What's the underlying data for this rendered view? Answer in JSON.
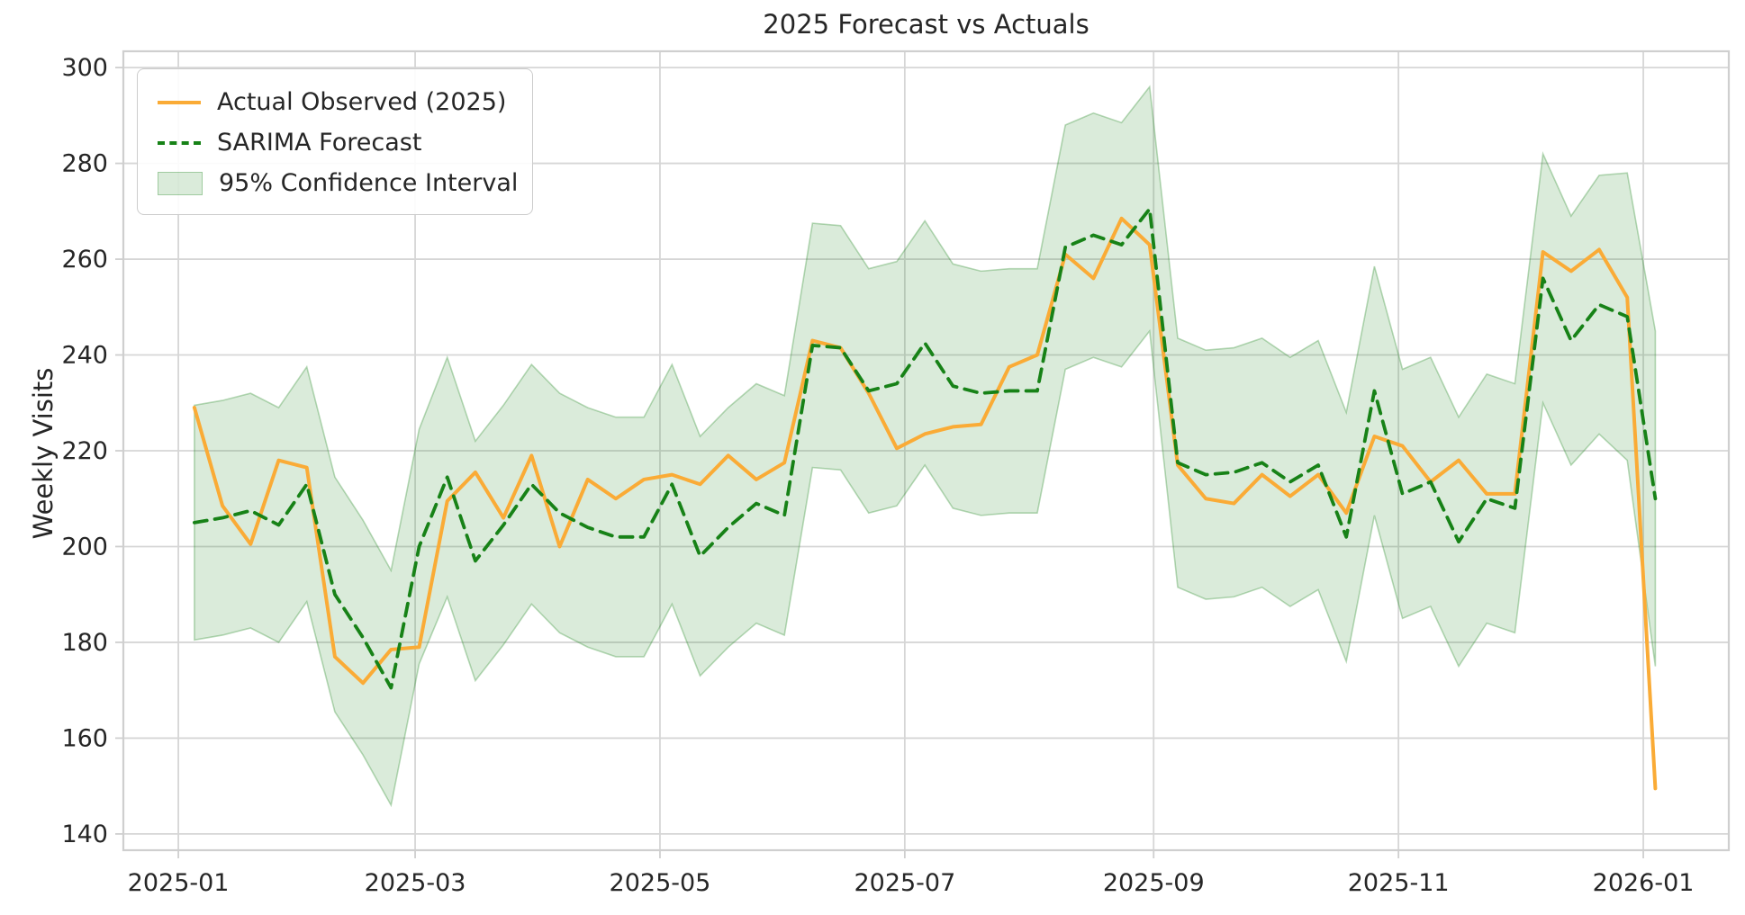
{
  "page": {
    "background": "#ffffff"
  },
  "chart_data": {
    "type": "line",
    "title": "2025 Forecast vs Actuals",
    "xlabel": "",
    "ylabel": "Weekly Visits",
    "grid": true,
    "legend_position": "upper left",
    "legend": [
      {
        "label": "Actual Observed (2025)",
        "series": "actual",
        "style": "solid"
      },
      {
        "label": "SARIMA Forecast",
        "series": "forecast",
        "style": "dashed"
      },
      {
        "label": "95% Confidence Interval",
        "series": "confidence_interval",
        "style": "band"
      }
    ],
    "colors": {
      "actual": "#FAAB36",
      "forecast": "#178217",
      "band_fill": "rgba(23,130,23,0.16)",
      "band_edge": "rgba(23,130,23,0.30)",
      "grid": "#d6d6d6",
      "spine": "#cfcfcf",
      "text": "#262626"
    },
    "ylim": [
      136.6,
      303.4
    ],
    "y_ticks": [
      140,
      160,
      180,
      200,
      220,
      240,
      260,
      280,
      300
    ],
    "xlim_days": [
      -13.7,
      386.3
    ],
    "x_tick_days": [
      0,
      59,
      120,
      181,
      243,
      304,
      365
    ],
    "x_tick_labels": [
      "2025-01",
      "2025-03",
      "2025-05",
      "2025-07",
      "2025-09",
      "2025-11",
      "2026-01"
    ],
    "dates": [
      "2025-01-05",
      "2025-01-12",
      "2025-01-19",
      "2025-01-26",
      "2025-02-02",
      "2025-02-09",
      "2025-02-16",
      "2025-02-23",
      "2025-03-02",
      "2025-03-09",
      "2025-03-16",
      "2025-03-23",
      "2025-03-30",
      "2025-04-06",
      "2025-04-13",
      "2025-04-20",
      "2025-04-27",
      "2025-05-04",
      "2025-05-11",
      "2025-05-18",
      "2025-05-25",
      "2025-06-01",
      "2025-06-08",
      "2025-06-15",
      "2025-06-22",
      "2025-06-29",
      "2025-07-06",
      "2025-07-13",
      "2025-07-20",
      "2025-07-27",
      "2025-08-03",
      "2025-08-10",
      "2025-08-17",
      "2025-08-24",
      "2025-08-31",
      "2025-09-07",
      "2025-09-14",
      "2025-09-21",
      "2025-09-28",
      "2025-10-05",
      "2025-10-12",
      "2025-10-19",
      "2025-10-26",
      "2025-11-02",
      "2025-11-09",
      "2025-11-16",
      "2025-11-23",
      "2025-11-30",
      "2025-12-07",
      "2025-12-14",
      "2025-12-21",
      "2025-12-28",
      "2026-01-04"
    ],
    "x_days": [
      4,
      11,
      18,
      25,
      32,
      39,
      46,
      53,
      60,
      67,
      74,
      81,
      88,
      95,
      102,
      109,
      116,
      123,
      130,
      137,
      144,
      151,
      158,
      165,
      172,
      179,
      186,
      193,
      200,
      207,
      214,
      221,
      228,
      235,
      242,
      249,
      256,
      263,
      270,
      277,
      284,
      291,
      298,
      305,
      312,
      319,
      326,
      333,
      340,
      347,
      354,
      361,
      368
    ],
    "series": [
      {
        "name": "Actual Observed (2025)",
        "key": "actual",
        "dash": false,
        "values": [
          229,
          208.5,
          200.5,
          218,
          216.5,
          177,
          171.5,
          178.5,
          179,
          209.5,
          215.5,
          206,
          219,
          200,
          214,
          210,
          214,
          215,
          213,
          219,
          214,
          217.5,
          243,
          241.5,
          232,
          220.5,
          223.5,
          225,
          225.5,
          237.5,
          240,
          261,
          256,
          268.5,
          263,
          217,
          210,
          209,
          215,
          210.5,
          215,
          207,
          223,
          221,
          213.5,
          218,
          211,
          211,
          261.5,
          257.5,
          262,
          252,
          149.5
        ]
      },
      {
        "name": "SARIMA Forecast",
        "key": "forecast",
        "dash": true,
        "values": [
          205,
          206,
          207.5,
          204.5,
          213,
          190,
          181,
          170.5,
          200,
          214.5,
          197,
          204.5,
          213,
          207,
          204,
          202,
          202,
          213,
          198,
          204,
          209,
          206.5,
          242,
          241.5,
          232.5,
          234,
          242.5,
          233.5,
          232,
          232.5,
          232.5,
          262.5,
          265,
          263,
          270.5,
          217.5,
          215,
          215.5,
          217.5,
          213.5,
          217,
          202,
          232.5,
          211,
          213.5,
          201,
          210,
          208,
          256,
          243,
          250.5,
          248,
          210
        ]
      }
    ],
    "band": {
      "name": "95% Confidence Interval",
      "upper": [
        229.5,
        230.5,
        232,
        229,
        237.5,
        214.5,
        205.5,
        195,
        224.5,
        239.5,
        222,
        229.5,
        238,
        232,
        229,
        227,
        227,
        238,
        223,
        229,
        234,
        231.5,
        267.5,
        267,
        258,
        259.5,
        268,
        259,
        257.5,
        258,
        258,
        288,
        290.5,
        288.5,
        296,
        243.5,
        241,
        241.5,
        243.5,
        239.5,
        243,
        228,
        258.5,
        237,
        239.5,
        227,
        236,
        234,
        282,
        269,
        277.5,
        278,
        245
      ],
      "lower": [
        180.5,
        181.5,
        183,
        180,
        188.5,
        165.5,
        156.5,
        146,
        175.5,
        189.5,
        172,
        179.5,
        188,
        182,
        179,
        177,
        177,
        188,
        173,
        179,
        184,
        181.5,
        216.5,
        216,
        207,
        208.5,
        217,
        208,
        206.5,
        207,
        207,
        237,
        239.5,
        237.5,
        245,
        191.5,
        189,
        189.5,
        191.5,
        187.5,
        191,
        176,
        206.5,
        185,
        187.5,
        175,
        184,
        182,
        230,
        217,
        223.5,
        218,
        175
      ]
    }
  }
}
